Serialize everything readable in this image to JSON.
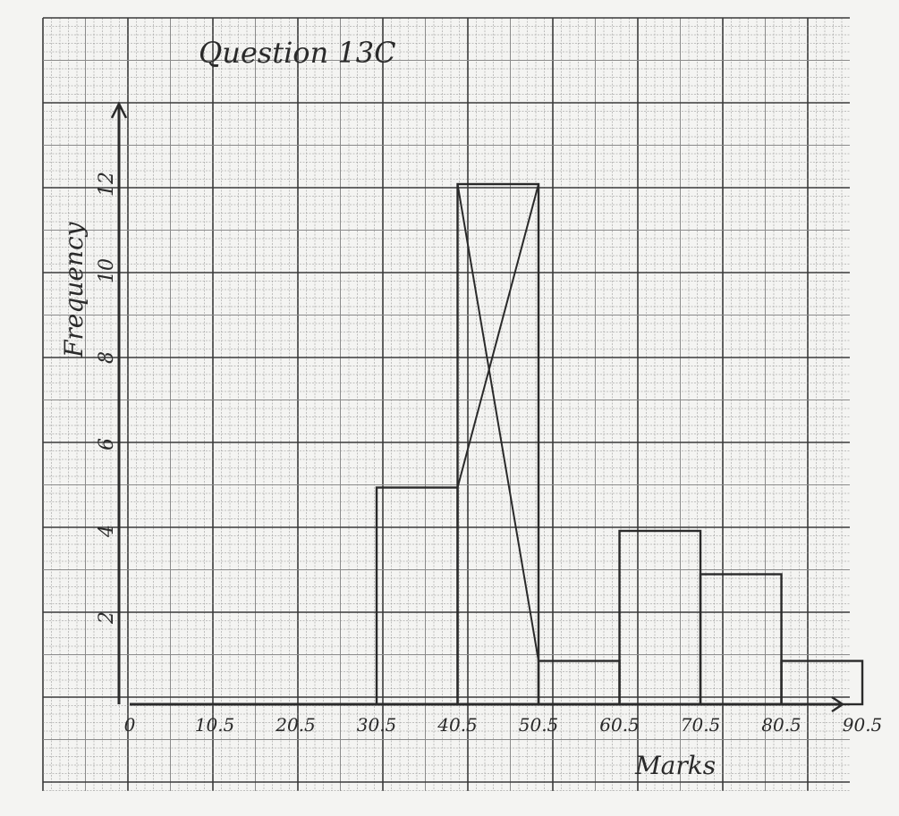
{
  "chart_data": {
    "type": "histogram",
    "title": "Question 13C",
    "xlabel": "Marks",
    "ylabel": "Frequency",
    "x_tick_labels": [
      "0",
      "10.5",
      "20.5",
      "30.5",
      "40.5",
      "50.5",
      "60.5",
      "70.5",
      "80.5",
      "90.5"
    ],
    "y_tick_labels": [
      "2",
      "4",
      "6",
      "8",
      "10",
      "12"
    ],
    "x_ticks": [
      0,
      10.5,
      20.5,
      30.5,
      40.5,
      50.5,
      60.5,
      70.5,
      80.5,
      90.5
    ],
    "y_ticks": [
      2,
      4,
      6,
      8,
      10,
      12
    ],
    "xlim": [
      0,
      90.5
    ],
    "ylim": [
      0,
      14
    ],
    "bars": [
      {
        "x0": 30.5,
        "x1": 40.5,
        "height": 5
      },
      {
        "x0": 40.5,
        "x1": 50.5,
        "height": 12
      },
      {
        "x0": 50.5,
        "x1": 60.5,
        "height": 1
      },
      {
        "x0": 60.5,
        "x1": 70.5,
        "height": 4
      },
      {
        "x0": 70.5,
        "x1": 80.5,
        "height": 3
      },
      {
        "x0": 80.5,
        "x1": 90.5,
        "height": 1
      }
    ],
    "mode_lines": [
      {
        "from": [
          40.5,
          5
        ],
        "to": [
          50.5,
          12
        ]
      },
      {
        "from": [
          40.5,
          12
        ],
        "to": [
          50.5,
          1
        ]
      }
    ],
    "grid": true,
    "background": "graph-paper",
    "ink_color": "#2a2a2a",
    "grid_minor_color": "#8a8a8a",
    "grid_major_color": "#3a3a3a"
  }
}
